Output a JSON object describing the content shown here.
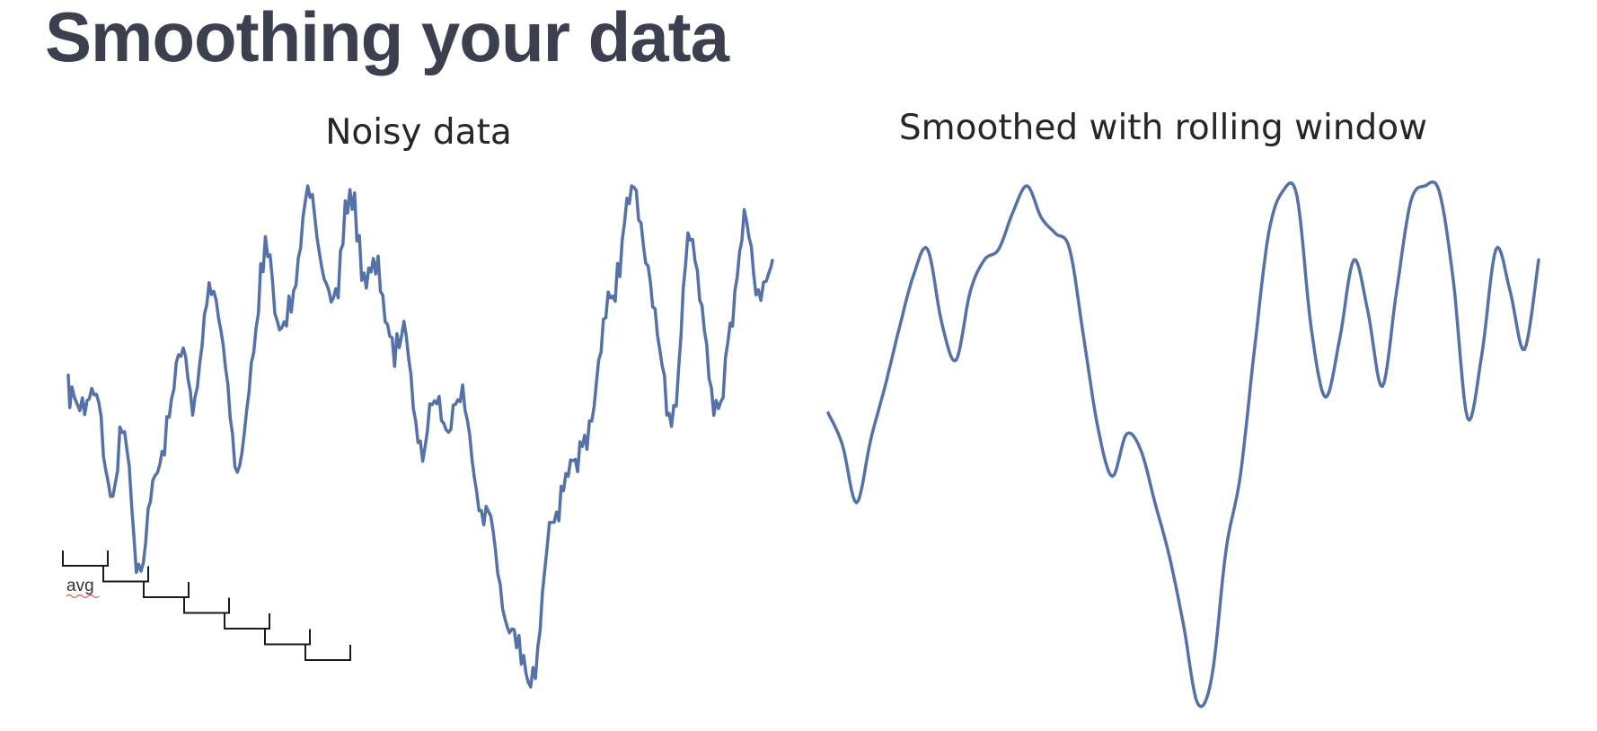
{
  "slide": {
    "title": "Smoothing your data"
  },
  "annotation": {
    "window_label": "avg",
    "window_count": 7
  },
  "chart_data": [
    {
      "type": "line",
      "title": "Noisy data",
      "xlabel": "",
      "ylabel": "",
      "axes": "hidden",
      "grid": false,
      "color": "#5471a8",
      "x": [
        0,
        2,
        4,
        6,
        8,
        10,
        12,
        14,
        16,
        18,
        20,
        22,
        24,
        26,
        28,
        30,
        32,
        34,
        36,
        38,
        40,
        42,
        44,
        46,
        48,
        50,
        52,
        54,
        56,
        58,
        60,
        62,
        64,
        66,
        68,
        70,
        72,
        74,
        76,
        78,
        80,
        82,
        84,
        86,
        88,
        90,
        92,
        94,
        96,
        98,
        100
      ],
      "y": [
        0.59,
        0.56,
        0.59,
        0.38,
        0.52,
        0.23,
        0.4,
        0.51,
        0.67,
        0.57,
        0.79,
        0.69,
        0.44,
        0.63,
        0.87,
        0.71,
        0.8,
        0.98,
        0.84,
        0.78,
        0.99,
        0.82,
        0.83,
        0.67,
        0.71,
        0.47,
        0.58,
        0.51,
        0.6,
        0.38,
        0.33,
        0.14,
        0.08,
        0.01,
        0.29,
        0.37,
        0.45,
        0.51,
        0.72,
        0.82,
        0.99,
        0.86,
        0.66,
        0.55,
        0.89,
        0.76,
        0.56,
        0.71,
        0.93,
        0.79,
        0.86
      ]
    },
    {
      "type": "line",
      "title": "Smoothed with rolling window",
      "xlabel": "",
      "ylabel": "",
      "axes": "hidden",
      "grid": false,
      "color": "#5471a8",
      "x": [
        0,
        2,
        4,
        6,
        8,
        10,
        12,
        14,
        16,
        18,
        20,
        22,
        24,
        26,
        28,
        30,
        32,
        34,
        36,
        38,
        40,
        42,
        44,
        46,
        48,
        50,
        52,
        54,
        56,
        58,
        60,
        62,
        64,
        66,
        68,
        70,
        72,
        74,
        76,
        78,
        80,
        82,
        84,
        86,
        88,
        90,
        92,
        94,
        96,
        98,
        100
      ],
      "y": [
        0.57,
        0.51,
        0.4,
        0.52,
        0.62,
        0.73,
        0.83,
        0.88,
        0.74,
        0.67,
        0.8,
        0.86,
        0.88,
        0.95,
        1.0,
        0.94,
        0.91,
        0.88,
        0.71,
        0.54,
        0.45,
        0.53,
        0.5,
        0.4,
        0.3,
        0.17,
        0.02,
        0.07,
        0.31,
        0.45,
        0.69,
        0.91,
        0.99,
        0.98,
        0.73,
        0.6,
        0.71,
        0.86,
        0.76,
        0.62,
        0.8,
        0.97,
        1.0,
        0.99,
        0.82,
        0.56,
        0.68,
        0.88,
        0.8,
        0.69,
        0.86
      ]
    }
  ]
}
